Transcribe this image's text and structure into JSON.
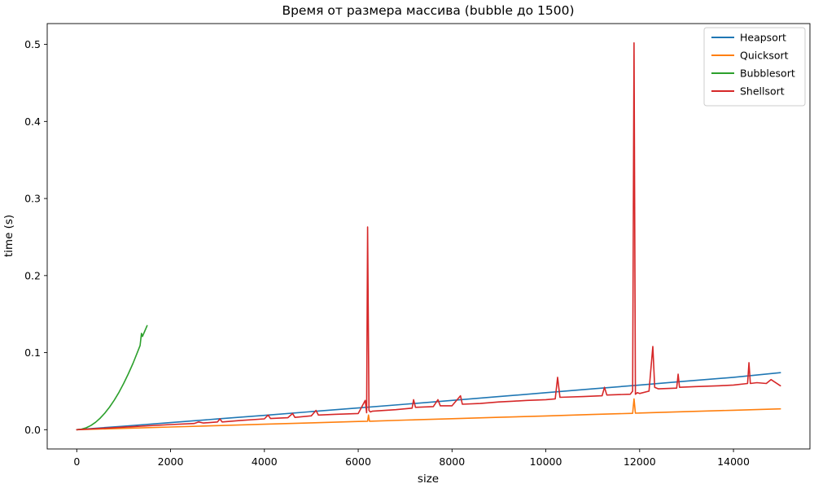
{
  "chart_data": {
    "type": "line",
    "title": "Время от размера массива (bubble до 1500)",
    "xlabel": "size",
    "ylabel": "time (s)",
    "xlim": [
      -630,
      15630
    ],
    "ylim": [
      -0.025,
      0.527
    ],
    "xticks": [
      0,
      2000,
      4000,
      6000,
      8000,
      10000,
      12000,
      14000
    ],
    "yticks": [
      0.0,
      0.1,
      0.2,
      0.3,
      0.4,
      0.5
    ],
    "xtick_labels": [
      "0",
      "2000",
      "4000",
      "6000",
      "8000",
      "10000",
      "12000",
      "14000"
    ],
    "ytick_labels": [
      "0.0",
      "0.1",
      "0.2",
      "0.3",
      "0.4",
      "0.5"
    ],
    "grid": false,
    "legend_location": "top-right",
    "series": [
      {
        "name": "Heapsort",
        "color": "#1f77b4",
        "x": [
          0,
          1000,
          2000,
          3000,
          4000,
          5000,
          6000,
          7000,
          8000,
          9000,
          10000,
          11000,
          12000,
          13000,
          14000,
          15000
        ],
        "y": [
          0.0,
          0.0045,
          0.0092,
          0.0139,
          0.0186,
          0.0234,
          0.0282,
          0.0331,
          0.038,
          0.043,
          0.048,
          0.053,
          0.058,
          0.063,
          0.068,
          0.074
        ]
      },
      {
        "name": "Quicksort",
        "color": "#ff7f0e",
        "x": [
          0,
          1000,
          2000,
          3000,
          4000,
          5000,
          6000,
          6200,
          6220,
          6240,
          7000,
          8000,
          9000,
          10000,
          11000,
          11850,
          11880,
          11910,
          12000,
          13000,
          14000,
          15000
        ],
        "y": [
          0.0,
          0.0017,
          0.0035,
          0.0053,
          0.0071,
          0.0089,
          0.0107,
          0.011,
          0.019,
          0.011,
          0.0125,
          0.0143,
          0.0161,
          0.0179,
          0.0197,
          0.0212,
          0.04,
          0.0214,
          0.0216,
          0.0234,
          0.0252,
          0.027
        ]
      },
      {
        "name": "Bubblesort",
        "color": "#2ca02c",
        "x": [
          0,
          100,
          200,
          300,
          400,
          500,
          600,
          700,
          800,
          900,
          1000,
          1100,
          1200,
          1300,
          1350,
          1380,
          1400,
          1450,
          1500
        ],
        "y": [
          0.0,
          0.0006,
          0.0024,
          0.0054,
          0.0096,
          0.015,
          0.0216,
          0.0294,
          0.0384,
          0.0486,
          0.06,
          0.0726,
          0.0864,
          0.1014,
          0.1093,
          0.125,
          0.121,
          0.128,
          0.135
        ]
      },
      {
        "name": "Shellsort",
        "color": "#d62728",
        "x": [
          0,
          1000,
          2000,
          2500,
          2600,
          2700,
          3000,
          3050,
          3100,
          3500,
          4000,
          4080,
          4130,
          4500,
          4600,
          4650,
          5000,
          5100,
          5150,
          5500,
          6000,
          6150,
          6180,
          6200,
          6230,
          6260,
          6300,
          6800,
          7150,
          7180,
          7220,
          7600,
          7700,
          7750,
          8000,
          8180,
          8220,
          8600,
          9000,
          9300,
          9600,
          10000,
          10200,
          10250,
          10300,
          10800,
          11200,
          11250,
          11300,
          11800,
          11850,
          11880,
          11910,
          11950,
          12000,
          12200,
          12280,
          12320,
          12400,
          12790,
          12820,
          12850,
          13200,
          13700,
          14000,
          14300,
          14330,
          14360,
          14500,
          14700,
          14800,
          15000
        ],
        "y": [
          0.0,
          0.0033,
          0.0067,
          0.008,
          0.01,
          0.0087,
          0.01,
          0.014,
          0.01,
          0.012,
          0.014,
          0.019,
          0.0145,
          0.0155,
          0.021,
          0.016,
          0.018,
          0.025,
          0.019,
          0.02,
          0.021,
          0.038,
          0.022,
          0.263,
          0.025,
          0.023,
          0.024,
          0.026,
          0.028,
          0.039,
          0.029,
          0.03,
          0.039,
          0.031,
          0.031,
          0.044,
          0.033,
          0.034,
          0.036,
          0.037,
          0.038,
          0.039,
          0.04,
          0.068,
          0.042,
          0.043,
          0.044,
          0.055,
          0.045,
          0.046,
          0.05,
          0.502,
          0.046,
          0.048,
          0.047,
          0.05,
          0.108,
          0.055,
          0.053,
          0.054,
          0.072,
          0.055,
          0.056,
          0.057,
          0.058,
          0.06,
          0.087,
          0.06,
          0.061,
          0.06,
          0.065,
          0.057
        ]
      }
    ]
  }
}
